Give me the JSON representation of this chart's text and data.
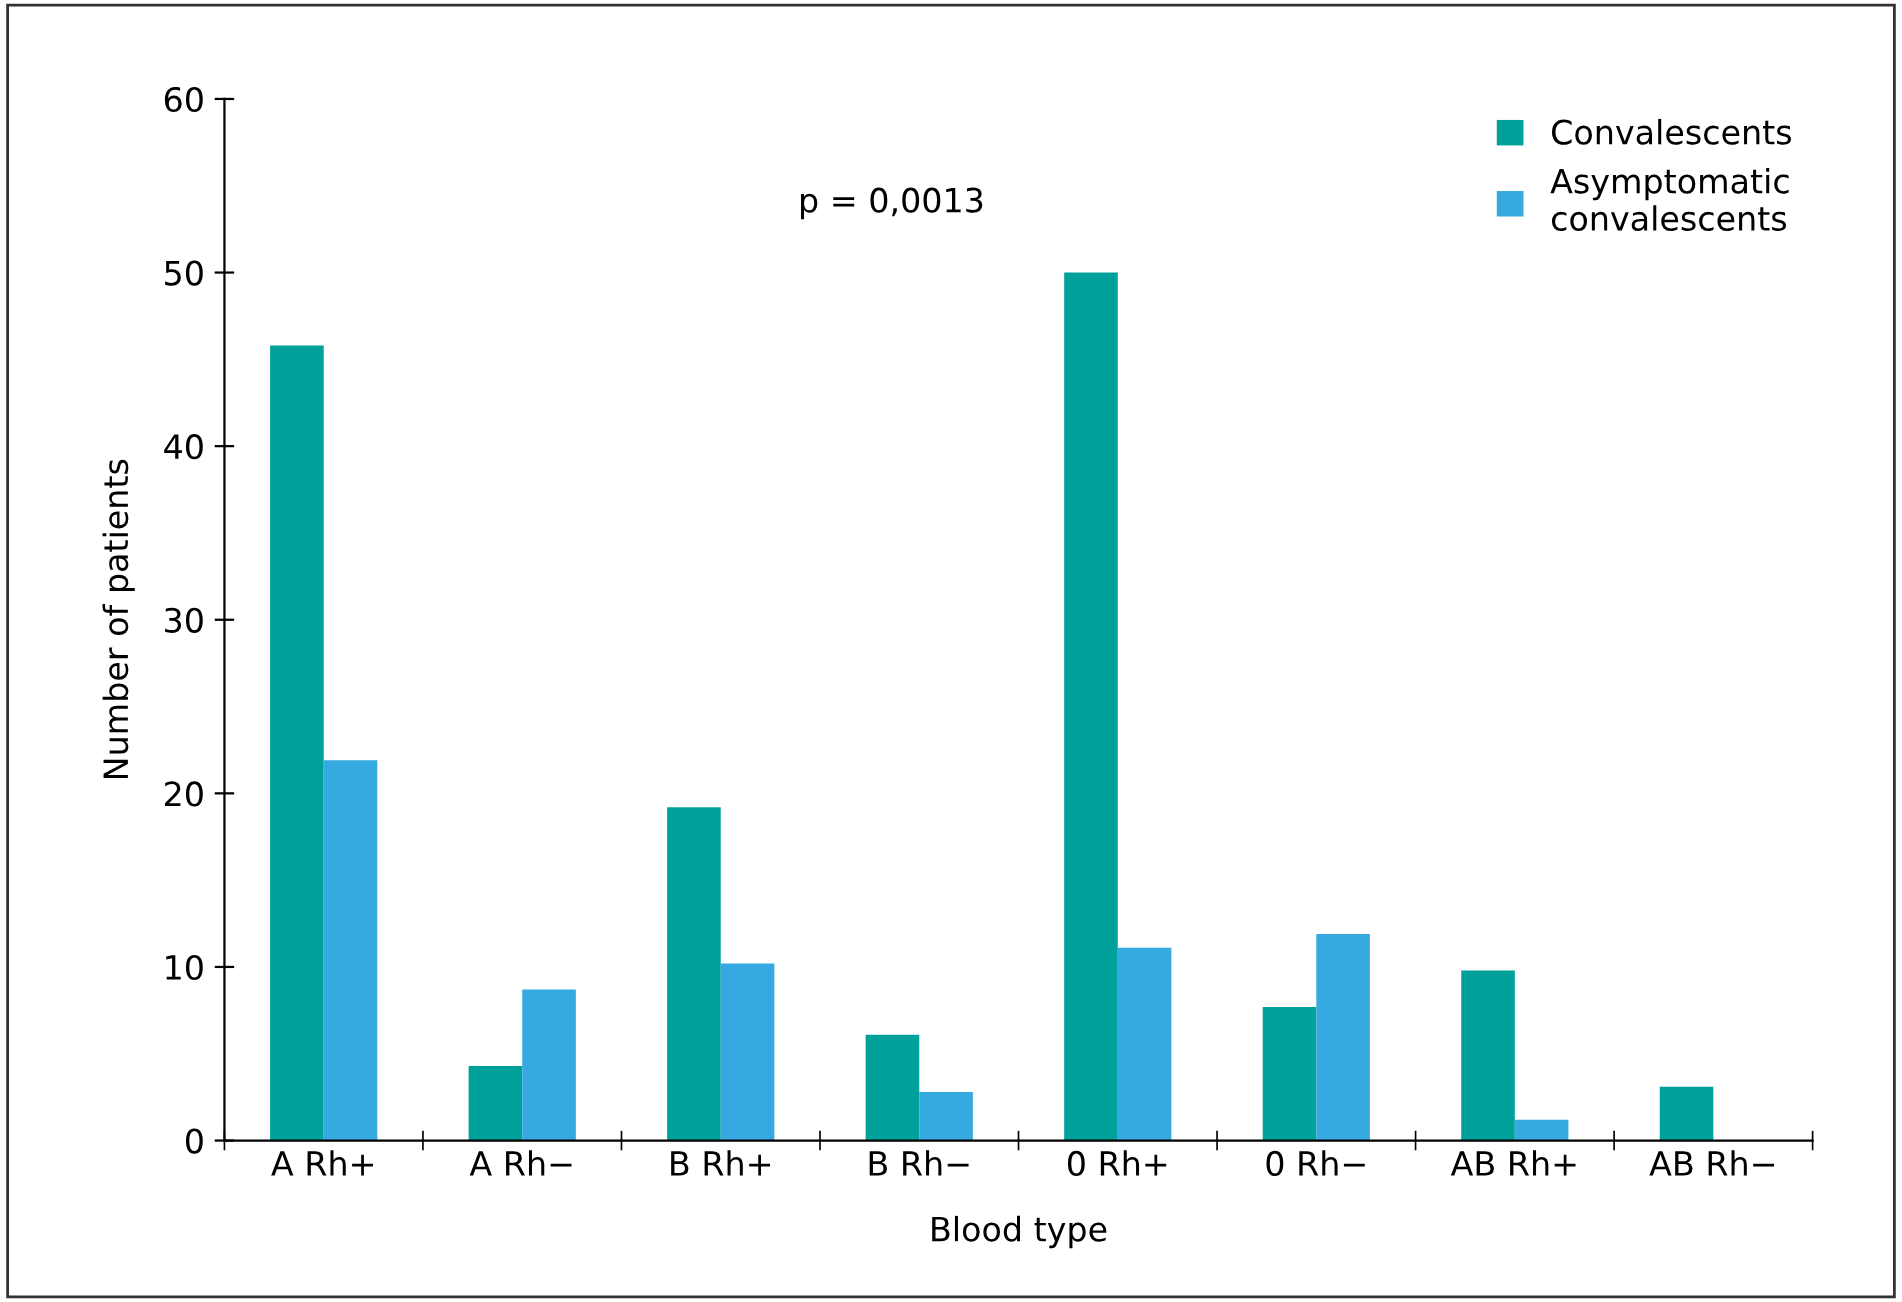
{
  "chart_data": {
    "type": "bar",
    "xlabel": "Blood type",
    "ylabel": "Number of patients",
    "categories": [
      "A Rh+",
      "A Rh−",
      "B Rh+",
      "B Rh−",
      "0 Rh+",
      "0 Rh−",
      "AB Rh+",
      "AB Rh−"
    ],
    "series": [
      {
        "name": "Convalescents",
        "color": "#00a19a",
        "values": [
          45.8,
          4.3,
          19.2,
          6.1,
          50,
          7.7,
          9.8,
          3.1
        ]
      },
      {
        "name": "Asymptomatic\nconvalescents",
        "color": "#36a9e1",
        "values": [
          21.9,
          8.7,
          10.2,
          2.8,
          11.1,
          11.9,
          1.2,
          0
        ]
      }
    ],
    "ylim": [
      0,
      60
    ],
    "yticks": [
      0,
      10,
      20,
      30,
      40,
      50,
      60
    ],
    "grid": false,
    "legend": "top right",
    "annotations": [
      "p = 0,0013"
    ]
  }
}
